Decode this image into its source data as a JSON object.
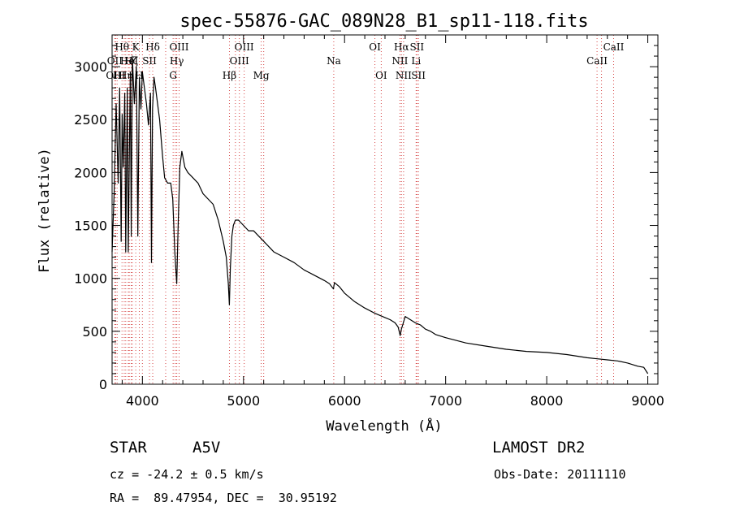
{
  "chart_data": {
    "type": "line",
    "title": "spec-55876-GAC_089N28_B1_sp11-118.fits",
    "xlabel": "Wavelength (Å)",
    "ylabel": "Flux (relative)",
    "xlim": [
      3700,
      9100
    ],
    "ylim": [
      0,
      3300
    ],
    "x_ticks": [
      "4000",
      "5000",
      "6000",
      "7000",
      "8000",
      "9000"
    ],
    "y_ticks": [
      "0",
      "500",
      "1000",
      "1500",
      "2000",
      "2500",
      "3000"
    ],
    "grid": false,
    "legend": "none",
    "series": [
      {
        "x": [
          3700,
          3720,
          3740,
          3760,
          3775,
          3790,
          3800,
          3810,
          3825,
          3835,
          3850,
          3860,
          3880,
          3890,
          3900,
          3920,
          3940,
          3955,
          3970,
          3985,
          4000,
          4020,
          4040,
          4060,
          4080,
          4090,
          4100,
          4115,
          4130,
          4150,
          4170,
          4200,
          4220,
          4250,
          4280,
          4300,
          4320,
          4340,
          4355,
          4370,
          4390,
          4420,
          4450,
          4500,
          4550,
          4600,
          4650,
          4700,
          4750,
          4800,
          4830,
          4850,
          4860,
          4870,
          4885,
          4900,
          4920,
          4950,
          5000,
          5050,
          5100,
          5150,
          5200,
          5300,
          5400,
          5500,
          5600,
          5700,
          5800,
          5850,
          5890,
          5900,
          5950,
          6000,
          6100,
          6200,
          6300,
          6400,
          6450,
          6500,
          6530,
          6550,
          6562,
          6575,
          6600,
          6650,
          6700,
          6750,
          6800,
          6850,
          6900,
          7000,
          7200,
          7400,
          7600,
          7800,
          8000,
          8200,
          8400,
          8500,
          8600,
          8700,
          8800,
          8900,
          8960,
          9000
        ],
        "values": [
          1250,
          1800,
          2650,
          1900,
          2800,
          1350,
          2550,
          2050,
          2750,
          1250,
          2800,
          1250,
          2950,
          1400,
          3100,
          2650,
          3000,
          1400,
          2900,
          2600,
          2950,
          2800,
          2650,
          2450,
          2750,
          1150,
          2600,
          2900,
          2800,
          2650,
          2500,
          2150,
          1950,
          1900,
          1900,
          1750,
          1250,
          950,
          1550,
          2050,
          2200,
          2050,
          2000,
          1950,
          1900,
          1800,
          1750,
          1700,
          1550,
          1350,
          1200,
          950,
          750,
          1100,
          1400,
          1500,
          1550,
          1550,
          1500,
          1450,
          1450,
          1400,
          1350,
          1250,
          1200,
          1150,
          1080,
          1030,
          980,
          950,
          900,
          960,
          920,
          860,
          780,
          720,
          670,
          630,
          610,
          580,
          540,
          460,
          520,
          560,
          640,
          610,
          580,
          560,
          520,
          500,
          470,
          440,
          390,
          360,
          330,
          310,
          300,
          280,
          250,
          240,
          230,
          220,
          200,
          170,
          160,
          100
        ]
      }
    ],
    "spectral_lines": [
      {
        "label": "Hθ",
        "x": 3798,
        "row": 0
      },
      {
        "label": "OII",
        "x": 3727,
        "row": 1
      },
      {
        "label": "H",
        "x": 3750,
        "row": 2
      },
      {
        "label": "OIII",
        "x": 3735,
        "row": 2
      },
      {
        "label": "Hη",
        "x": 3835,
        "row": 2
      },
      {
        "label": "K",
        "x": 3934,
        "row": 0
      },
      {
        "label": "Hζ",
        "x": 3889,
        "row": 1
      },
      {
        "label": "HeI",
        "x": 3870,
        "row": 1
      },
      {
        "label": "H",
        "x": 3969,
        "row": 2
      },
      {
        "label": "SII",
        "x": 4070,
        "row": 1
      },
      {
        "label": "Hδ",
        "x": 4102,
        "row": 0
      },
      {
        "label": "OIII",
        "x": 4363,
        "row": 0
      },
      {
        "label": "Hγ",
        "x": 4340,
        "row": 1
      },
      {
        "label": "G",
        "x": 4304,
        "row": 2
      },
      {
        "label": "OIII",
        "x": 5007,
        "row": 0
      },
      {
        "label": "OIII",
        "x": 4959,
        "row": 1
      },
      {
        "label": "Hβ",
        "x": 4861,
        "row": 2
      },
      {
        "label": "Mg",
        "x": 5175,
        "row": 2
      },
      {
        "label": "Na",
        "x": 5893,
        "row": 1
      },
      {
        "label": "OI",
        "x": 6300,
        "row": 0
      },
      {
        "label": "OI",
        "x": 6363,
        "row": 2
      },
      {
        "label": "Hα",
        "x": 6563,
        "row": 0
      },
      {
        "label": "SII",
        "x": 6716,
        "row": 0
      },
      {
        "label": "NII",
        "x": 6548,
        "row": 1
      },
      {
        "label": "Li",
        "x": 6708,
        "row": 1
      },
      {
        "label": "NII",
        "x": 6584,
        "row": 2
      },
      {
        "label": "SII",
        "x": 6731,
        "row": 2
      },
      {
        "label": "CaII",
        "x": 8662,
        "row": 0
      },
      {
        "label": "CaII",
        "x": 8498,
        "row": 1
      }
    ],
    "extra_marker_lines": [
      3820,
      3860,
      3900,
      4000,
      4230,
      4325,
      4920,
      5200,
      8542
    ]
  },
  "info": {
    "class_label": "STAR",
    "subclass": "A5V",
    "survey": "LAMOST DR2",
    "cz": "cz = -24.2 ± 0.5 km/s",
    "obs_date": "Obs-Date: 20111110",
    "radec": "RA =  89.47954, DEC =  30.95192"
  },
  "colors": {
    "spectrum": "#000000",
    "line_markers": "#d64545"
  }
}
